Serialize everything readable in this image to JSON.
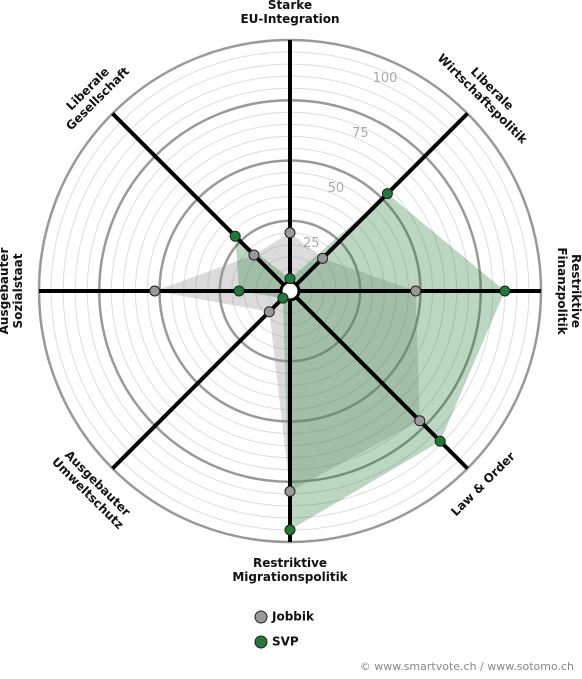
{
  "chart_data": {
    "type": "radar",
    "categories": [
      [
        "Starke",
        "EU-Integration"
      ],
      [
        "Liberale",
        "Wirtschaftspolitik"
      ],
      [
        "Restriktive",
        "Finanzpolitik"
      ],
      [
        "Law & Order"
      ],
      [
        "Restriktive",
        "Migrationspolitik"
      ],
      [
        "Ausgebauter",
        "Umweltschutz"
      ],
      [
        "Ausgebauter",
        "Sozialstaat"
      ],
      [
        "Liberale",
        "Gesellschaft"
      ]
    ],
    "series": [
      {
        "name": "Jobbik",
        "color": "#999999",
        "values": [
          20,
          15,
          48,
          72,
          79,
          8,
          52,
          17
        ]
      },
      {
        "name": "SVP",
        "color": "#1e7a34",
        "values": [
          1,
          53,
          85,
          84,
          95,
          0,
          17,
          28
        ]
      }
    ],
    "rlim": [
      0,
      100
    ],
    "rticks": [
      25,
      50,
      75,
      100
    ],
    "source": "© www.smartvote.ch / www.sotomo.ch"
  }
}
